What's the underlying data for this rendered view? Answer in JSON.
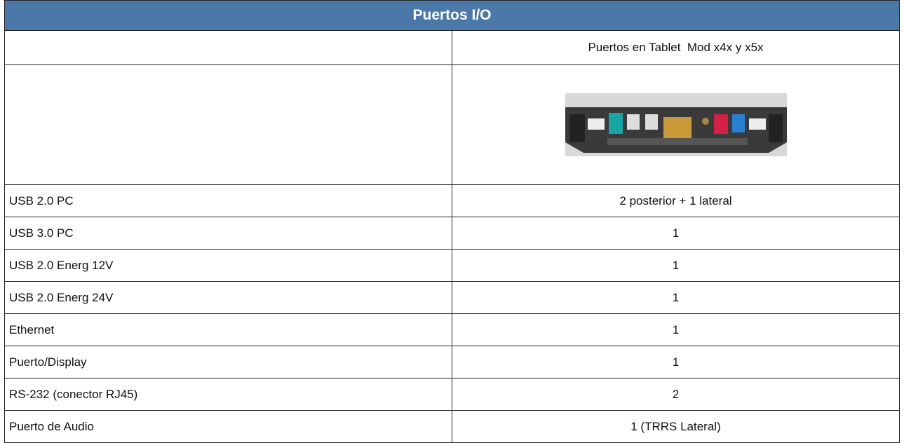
{
  "header": {
    "title": "Puertos I/O"
  },
  "table": {
    "subheader": "Puertos en Tablet  Mod x4x y x5x",
    "rows": [
      [
        "USB 2.0 PC",
        "2 posterior + 1 lateral"
      ],
      [
        "USB 3.0 PC",
        "1"
      ],
      [
        "USB 2.0 Energ 12V",
        "1"
      ],
      [
        "USB 2.0 Energ 24V",
        "1"
      ],
      [
        "Ethernet",
        "1"
      ],
      [
        "Puerto/Display",
        "1"
      ],
      [
        "RS-232 (conector RJ45)",
        "2"
      ],
      [
        "Puerto de Audio",
        "1 (TRRS Lateral)"
      ]
    ]
  }
}
